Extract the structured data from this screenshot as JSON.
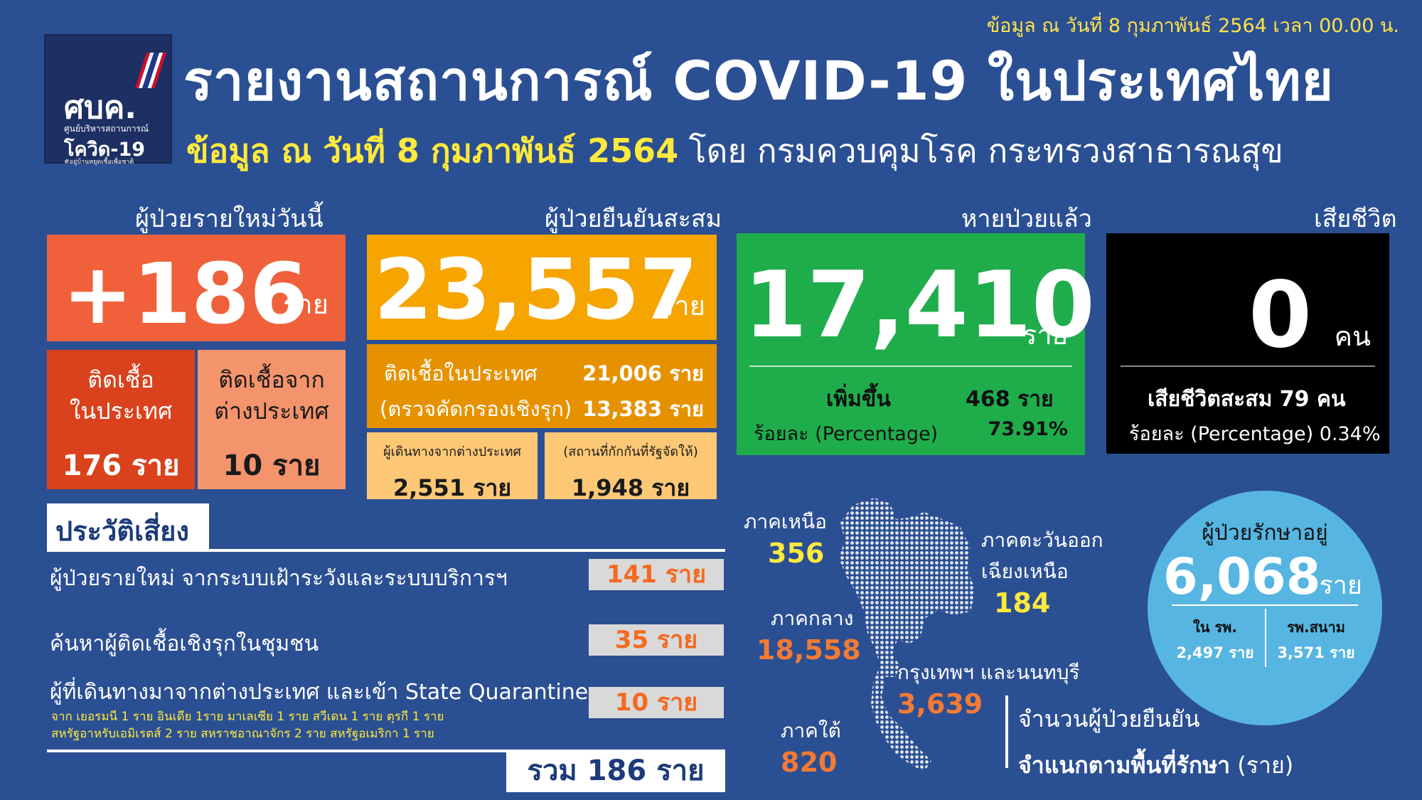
{
  "header": {
    "top_note": "ข้อมูล ณ วันที่ 8 กุมภาพันธ์ 2564 เวลา 00.00 น.",
    "title": "รายงานสถานการณ์ COVID-19 ในประเทศไทย",
    "subtitle_highlight": "ข้อมูล ณ วันที่ 8 กุมภาพันธ์ 2564",
    "subtitle_rest": " โดย กรมควบคุมโรค กระทรวงสาธารณสุข"
  },
  "logo": {
    "abbr": "ศบค.",
    "line1": "ศูนย์บริหารสถานการณ์",
    "line2": "โควิด-19",
    "line3": "#อยู่บ้านหยุดเชื้อเพื่อชาติ"
  },
  "new_cases": {
    "label": "ผู้ป่วยรายใหม่วันนี้",
    "value": "+186",
    "unit": "ราย",
    "domestic_label_1": "ติดเชื้อ",
    "domestic_label_2": "ในประเทศ",
    "domestic_value": "176 ราย",
    "imported_label_1": "ติดเชื้อจาก",
    "imported_label_2": "ต่างประเทศ",
    "imported_value": "10 ราย"
  },
  "cumulative": {
    "label": "ผู้ป่วยยืนยันสะสม",
    "value": "23,557",
    "unit": "ราย",
    "domestic_label": "ติดเชื้อในประเทศ",
    "domestic_value": "21,006 ราย",
    "screening_label": "(ตรวจคัดกรองเชิงรุก)",
    "screening_value": "13,383 ราย",
    "travelers_label": "ผู้เดินทางจากต่างประเทศ",
    "travelers_value": "2,551 ราย",
    "quarantine_label": "(สถานที่กักกันที่รัฐจัดให้)",
    "quarantine_value": "1,948 ราย"
  },
  "recovered": {
    "label": "หายป่วยแล้ว",
    "value": "17,410",
    "unit": "ราย",
    "increase_label": "เพิ่มขึ้น",
    "increase_value": "468 ราย",
    "percent_label": "ร้อยละ (Percentage)",
    "percent_value": "73.91%"
  },
  "deaths": {
    "label": "เสียชีวิต",
    "value": "0",
    "unit": "คน",
    "cumulative_text": "เสียชีวิตสะสม  79 คน",
    "percent_text": "ร้อยละ (Percentage) 0.34%"
  },
  "risk_history": {
    "title": "ประวัติเสี่ยง",
    "rows": [
      {
        "label": "ผู้ป่วยรายใหม่ จากระบบเฝ้าระวังและระบบบริการฯ",
        "value": "141 ราย"
      },
      {
        "label": "ค้นหาผู้ติดเชื้อเชิงรุกในชุมชน",
        "value": "35 ราย"
      },
      {
        "label": "ผู้ที่เดินทางมาจากต่างประเทศ และเข้า State Quarantine",
        "value": "10 ราย"
      }
    ],
    "note_1": "จาก เยอรมนี 1 ราย อินเดีย 1ราย มาเลเซีย 1 ราย สวีเดน 1 ราย ตุรกี 1 ราย",
    "note_2": "สหรัฐอาหรับเอมิเรตส์ 2 ราย สหราชอาณาจักร 2 ราย สหรัฐอเมริกา 1 ราย",
    "total": "รวม 186 ราย"
  },
  "regions": {
    "north_label": "ภาคเหนือ",
    "north_value": "356",
    "northeast_label_1": "ภาคตะวันออก",
    "northeast_label_2": "เฉียงเหนือ",
    "northeast_value": "184",
    "central_label": "ภาคกลาง",
    "central_value": "18,558",
    "bangkok_label": "กรุงเทพฯ และนนทบุรี",
    "bangkok_value": "3,639",
    "south_label": "ภาคใต้",
    "south_value": "820",
    "legend_1": "จำนวนผู้ป่วยยืนยัน",
    "legend_2_bold": "จำแนกตามพื้นที่รักษา",
    "legend_2_rest": " (ราย)"
  },
  "treating": {
    "label": "ผู้ป่วยรักษาอยู่",
    "value": "6,068",
    "unit": "ราย",
    "hospital_label": "ใน รพ.",
    "hospital_value": "2,497 ราย",
    "field_label": "รพ.สนาม",
    "field_value": "3,571 ราย"
  },
  "colors": {
    "background": "#2b4f93",
    "new_cases": "#f0603a",
    "cumulative": "#f6a400",
    "recovered": "#1fad4b",
    "deaths": "#000000",
    "treating": "#56b5e1",
    "highlight_yellow": "#ffe93d",
    "highlight_orange": "#f37a35"
  }
}
